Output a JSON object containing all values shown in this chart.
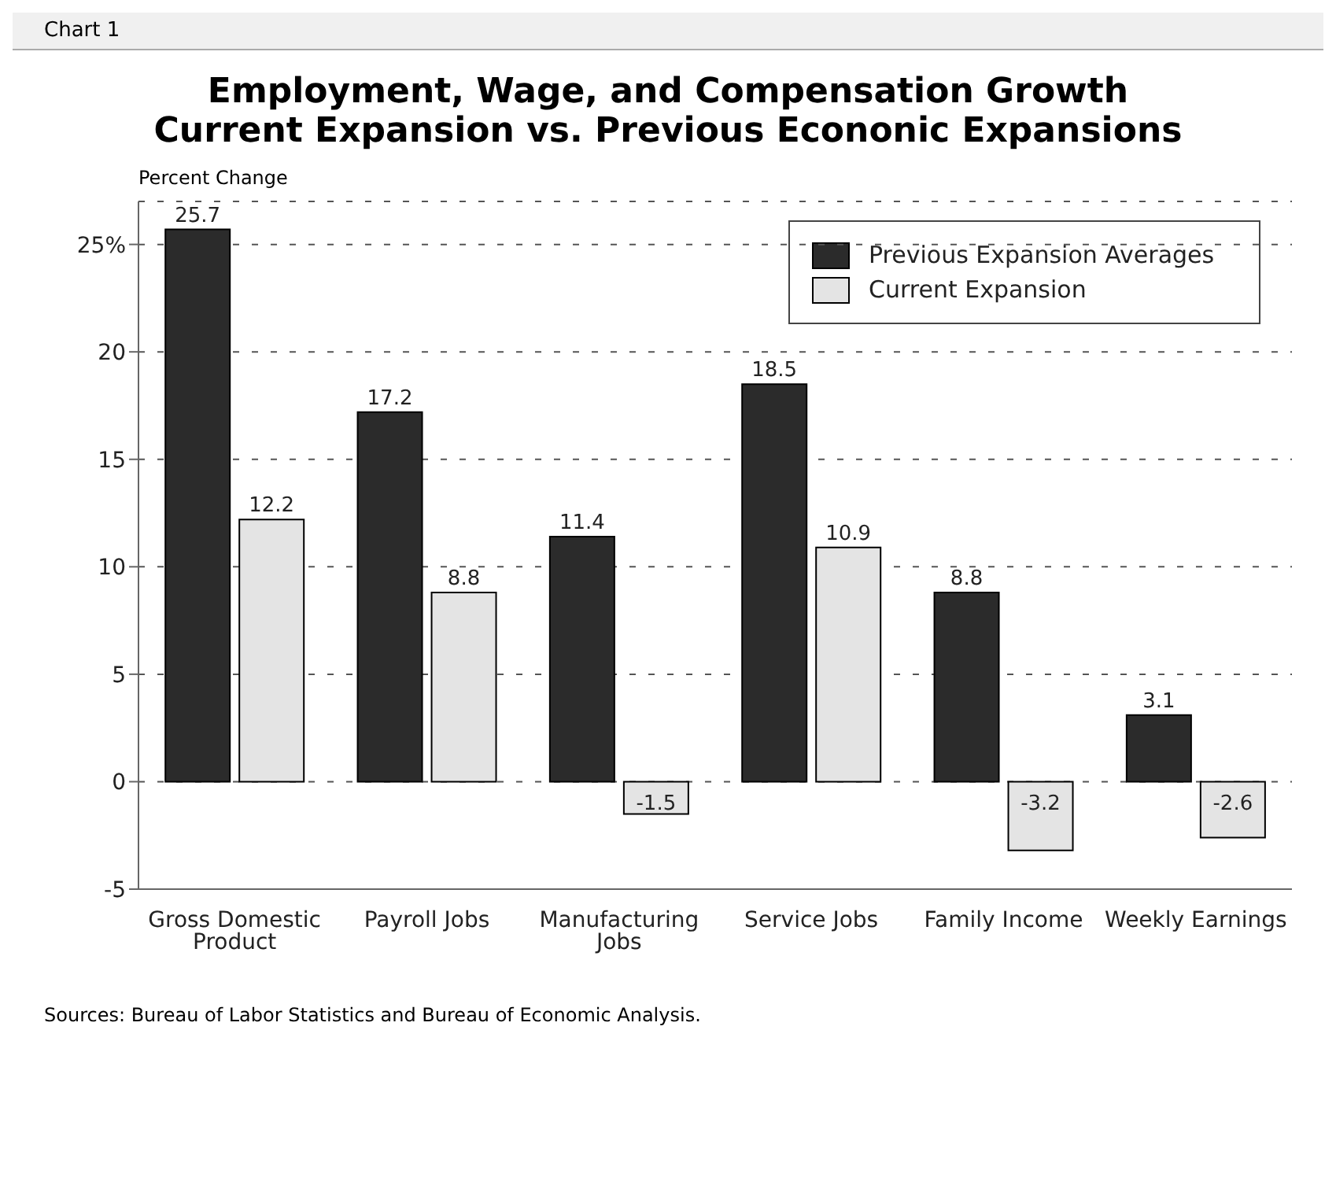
{
  "chart_data": {
    "type": "bar",
    "title": "Employment, Wage, and Compensation Growth",
    "subtitle": "Current Expansion vs. Previous Econonic Expansions",
    "ylabel": "Percent Change",
    "annotations": [
      "Chart 1",
      "Sources: Bureau of Labor Statistics and Bureau of Economic Analysis."
    ],
    "categories": [
      "Gross Domestic Product",
      "Payroll Jobs",
      "Manufacturing Jobs",
      "Service Jobs",
      "Family Income",
      "Weekly Earnings"
    ],
    "series": [
      {
        "name": "Previous Expansion Averages",
        "color": "#2b2b2b",
        "values": [
          25.7,
          17.2,
          11.4,
          18.5,
          8.8,
          3.1
        ]
      },
      {
        "name": "Current Expansion",
        "color": "#e4e4e4",
        "values": [
          12.2,
          8.8,
          -1.5,
          10.9,
          -3.2,
          -2.6
        ]
      }
    ],
    "ylim": [
      -5,
      27
    ],
    "yticks": [
      -5,
      0,
      5,
      10,
      {
        "value": 25,
        "label": "25%"
      },
      15,
      20
    ],
    "grid": "y",
    "legend": "top right",
    "data_labels": true
  }
}
